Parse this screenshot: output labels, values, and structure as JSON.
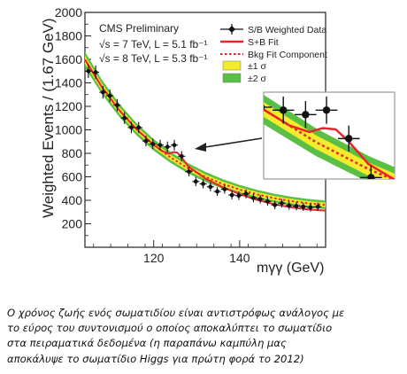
{
  "chart_data": {
    "type": "scatter",
    "title": "CMS Preliminary",
    "subtitle_lines": [
      "√s = 7 TeV, L = 5.1 fb⁻¹",
      "√s = 8 TeV, L = 5.3 fb⁻¹"
    ],
    "xlabel": "mγγ (GeV)",
    "ylabel": "Weighted Events / (1.67 GeV)",
    "xlim": [
      104,
      160
    ],
    "ylim": [
      0,
      2000
    ],
    "x_ticks": [
      120,
      140
    ],
    "y_ticks": [
      200,
      400,
      600,
      800,
      1000,
      1200,
      1400,
      1600,
      1800,
      2000
    ],
    "grid": false,
    "legend_position": "top-right",
    "legend": [
      {
        "label": "S/B Weighted Data",
        "kind": "marker"
      },
      {
        "label": "S+B Fit",
        "kind": "line",
        "color": "#e8232a"
      },
      {
        "label": "Bkg Fit Component",
        "kind": "dashed",
        "color": "#e8232a"
      },
      {
        "label": "±1 σ",
        "kind": "band",
        "color": "#f2ec2c"
      },
      {
        "label": "±2 σ",
        "kind": "band",
        "color": "#5cbf45"
      }
    ],
    "series": [
      {
        "name": "S/B Weighted Data",
        "x": [
          104.8,
          106.5,
          108.2,
          109.8,
          111.5,
          113.2,
          114.8,
          116.5,
          118.2,
          119.8,
          121.5,
          123.2,
          124.8,
          126.5,
          128.2,
          129.8,
          131.5,
          133.2,
          134.8,
          136.5,
          138.2,
          139.8,
          141.5,
          143.2,
          144.8,
          146.5,
          148.2,
          149.8,
          151.5,
          153.2,
          154.8,
          156.5,
          158.2
        ],
        "y": [
          1500,
          1490,
          1320,
          1290,
          1210,
          1100,
          1020,
          1020,
          905,
          880,
          870,
          855,
          870,
          775,
          645,
          560,
          540,
          515,
          475,
          495,
          445,
          440,
          455,
          420,
          410,
          390,
          360,
          375,
          355,
          350,
          345,
          340,
          345
        ]
      },
      {
        "name": "S+B Fit",
        "x": [
          104,
          108,
          112,
          116,
          120,
          122,
          123.5,
          124.5,
          125.5,
          126.5,
          128,
          132,
          136,
          140,
          144,
          148,
          152,
          156,
          160
        ],
        "y": [
          1598,
          1362,
          1166,
          1005,
          872,
          818,
          797,
          810,
          806,
          765,
          690,
          586,
          512,
          452,
          404,
          367,
          340,
          322,
          312
        ]
      },
      {
        "name": "Bkg Fit Component",
        "x": [
          104,
          108,
          112,
          116,
          120,
          124,
          128,
          132,
          136,
          140,
          144,
          148,
          152,
          156,
          160
        ],
        "y": [
          1598,
          1362,
          1166,
          1005,
          872,
          763,
          673,
          600,
          540,
          491,
          451,
          418,
          393,
          374,
          361
        ]
      }
    ],
    "inset": {
      "x_range": [
        120,
        130
      ],
      "note": "zoomed view of the signal region near 125 GeV"
    }
  },
  "caption": {
    "lines": [
      "Ο χρόνος ζωής ενός σωματιδίου είναι αντιστρόφως ανάλογος με",
      "το εύρος του συντονισμού ο οποίος αποκαλύπτει το σωματίδιο",
      "στα πειραματικά δεδομένα (η παραπάνω καμπύλη μας",
      "αποκάλυψε το σωματίδιο Higgs για πρώτη φορά το 2012)"
    ]
  }
}
